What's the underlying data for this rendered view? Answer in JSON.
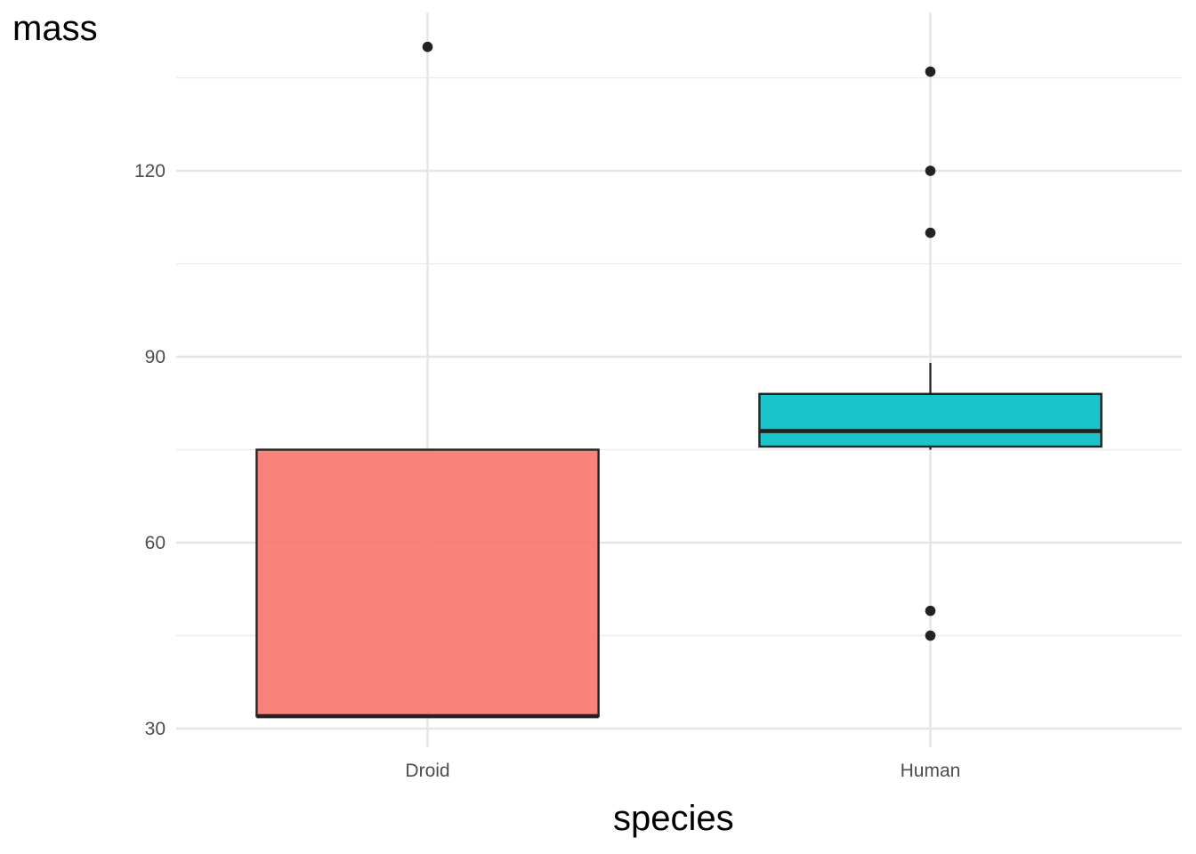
{
  "chart_data": {
    "type": "boxplot",
    "xlabel": "species",
    "ylabel": "mass",
    "categories": [
      "Droid",
      "Human"
    ],
    "yticks": [
      30,
      60,
      90,
      120
    ],
    "ylim": [
      27,
      150
    ],
    "grid": true,
    "boxes": [
      {
        "category": "Droid",
        "fill": "#F8766D",
        "min": 32,
        "q1": 32,
        "median": 32,
        "q3": 75,
        "max": 75,
        "outliers": [
          140
        ]
      },
      {
        "category": "Human",
        "fill": "#00BFC4",
        "min": 75,
        "q1": 75.5,
        "median": 78,
        "q3": 84,
        "max": 89,
        "outliers": [
          136,
          120,
          110,
          49,
          45
        ]
      }
    ]
  }
}
